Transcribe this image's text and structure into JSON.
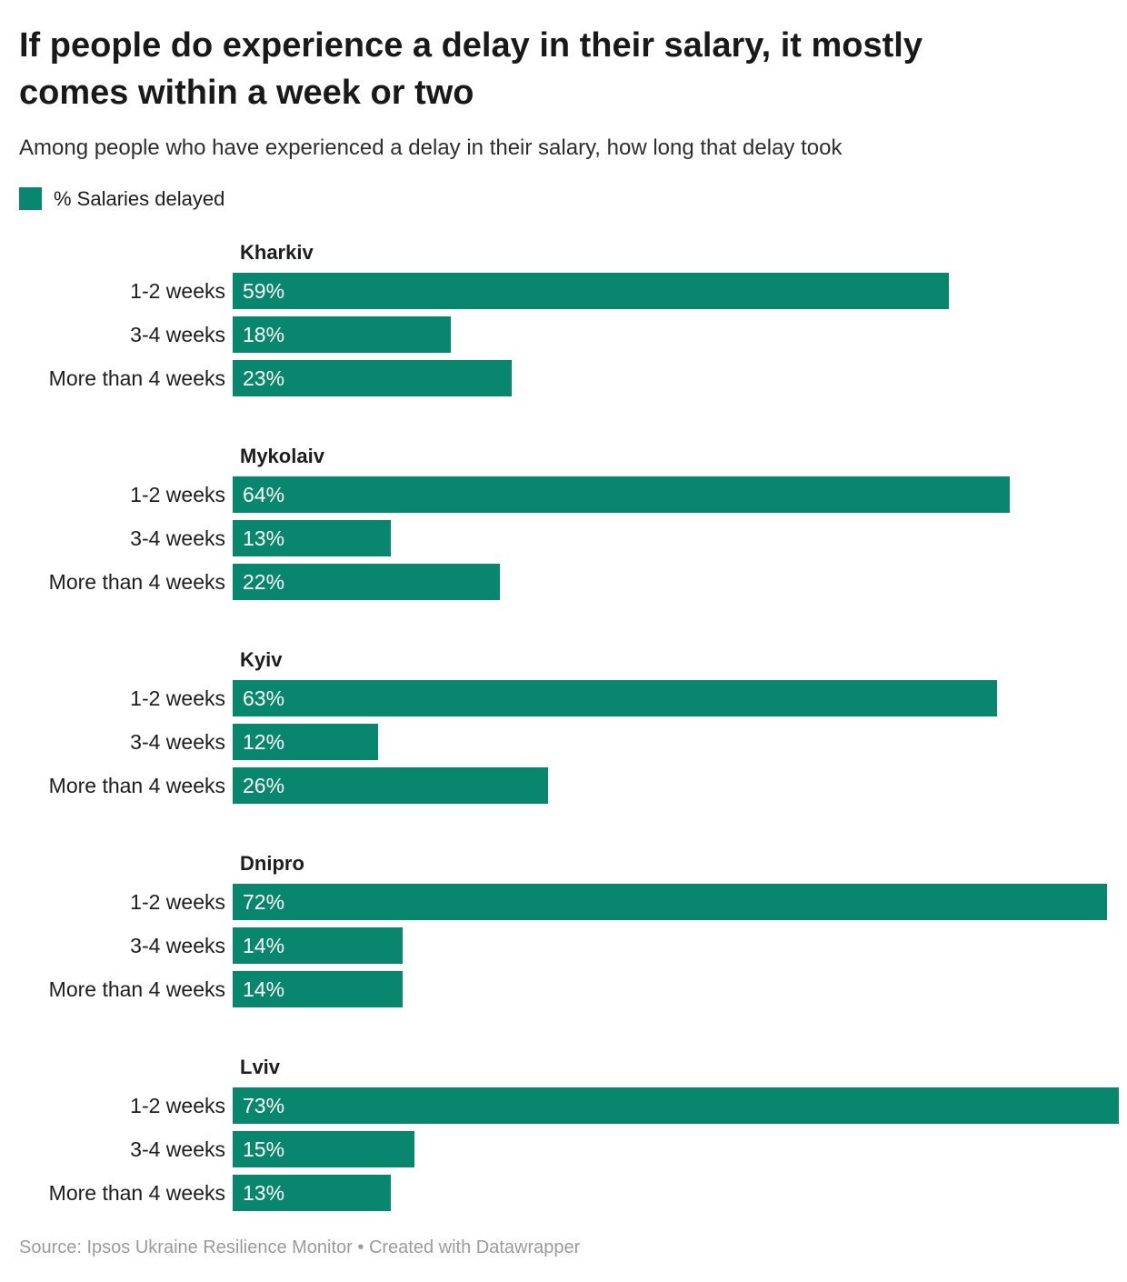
{
  "chart_data": {
    "type": "bar",
    "orientation": "horizontal",
    "title": "If people do experience a delay in their salary, it mostly comes within a week or two",
    "subtitle": "Among people who have experienced a delay in their salary, how long that delay took",
    "legend": "% Salaries delayed",
    "legend_position": "top-left",
    "categories": [
      "1-2 weeks",
      "3-4 weeks",
      "More than 4 weeks"
    ],
    "groups": [
      {
        "name": "Kharkiv",
        "values": [
          59,
          18,
          23
        ]
      },
      {
        "name": "Mykolaiv",
        "values": [
          64,
          13,
          22
        ]
      },
      {
        "name": "Kyiv",
        "values": [
          63,
          12,
          26
        ]
      },
      {
        "name": "Dnipro",
        "values": [
          72,
          14,
          14
        ]
      },
      {
        "name": "Lviv",
        "values": [
          73,
          15,
          13
        ]
      }
    ],
    "value_suffix": "%",
    "value_labels": "inside-start",
    "xlim": [
      0,
      73
    ],
    "grid": false,
    "bar_color": "#08876E",
    "value_label_color": "#ffffff"
  },
  "footer": {
    "text": "Source: Ipsos Ukraine Resilience Monitor • Created with Datawrapper"
  }
}
